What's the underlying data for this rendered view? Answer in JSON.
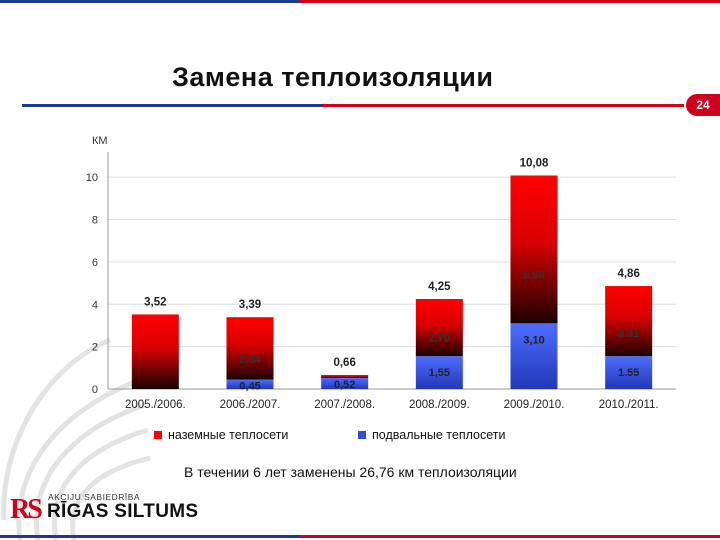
{
  "slide": {
    "title": "Замена теплоизоляции",
    "page_number": "24",
    "summary": "В течении 6 лет заменены 26,76 км теплоизоляции"
  },
  "logo": {
    "mark": "RS",
    "subtitle": "AKCIJU SABIEDRĪBA",
    "name": "RĪGAS SILTUMS"
  },
  "chart_data": {
    "type": "bar",
    "stacked": true,
    "ylabel": "КМ",
    "ylim": [
      0,
      11
    ],
    "yticks": [
      0,
      2,
      4,
      6,
      8,
      10
    ],
    "grid": true,
    "legend_position": "bottom",
    "categories": [
      "2005./2006.",
      "2006./2007.",
      "2007./2008.",
      "2008./2009.",
      "2009./2010.",
      "2010./2011."
    ],
    "series": [
      {
        "name": "подвальные теплосети",
        "color": "#2f4fd8",
        "values": [
          0,
          0.45,
          0.52,
          1.55,
          3.1,
          1.55
        ],
        "labels": [
          "",
          "0,45",
          "0,52",
          "1,55",
          "3,10",
          "1.55"
        ]
      },
      {
        "name": "наземные теплосети",
        "color": "#ff0000",
        "values": [
          3.52,
          2.94,
          0.14,
          2.7,
          6.98,
          3.31
        ],
        "labels": [
          "",
          "2.94",
          "",
          "2.70",
          "6.98",
          "3.31"
        ]
      }
    ],
    "totals": [
      3.52,
      3.39,
      0.66,
      4.25,
      10.08,
      4.86
    ],
    "total_labels": [
      "3,52",
      "3,39",
      "0,66",
      "4,25",
      "10,08",
      "4,86"
    ]
  }
}
